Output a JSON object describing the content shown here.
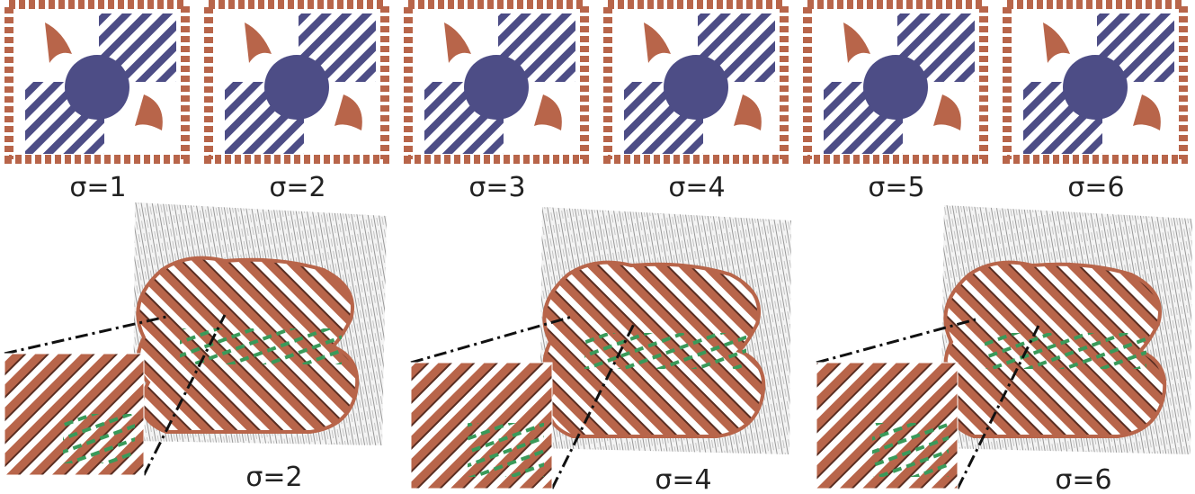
{
  "figure": {
    "top_row": {
      "panels": [
        {
          "label": "σ=1"
        },
        {
          "label": "σ=2"
        },
        {
          "label": "σ=3"
        },
        {
          "label": "σ=4"
        },
        {
          "label": "σ=5"
        },
        {
          "label": "σ=6"
        }
      ]
    },
    "bottom_row": {
      "panels": [
        {
          "label": "σ=2"
        },
        {
          "label": "σ=4"
        },
        {
          "label": "σ=6"
        }
      ]
    },
    "colors": {
      "glyph_red": "#b8654a",
      "glyph_dark": "#5a2e22",
      "glyph_blue": "#4d4d86",
      "glyph_green": "#3a9a5a",
      "noise_gray": "#bdbdbd",
      "background": "#ffffff"
    }
  }
}
